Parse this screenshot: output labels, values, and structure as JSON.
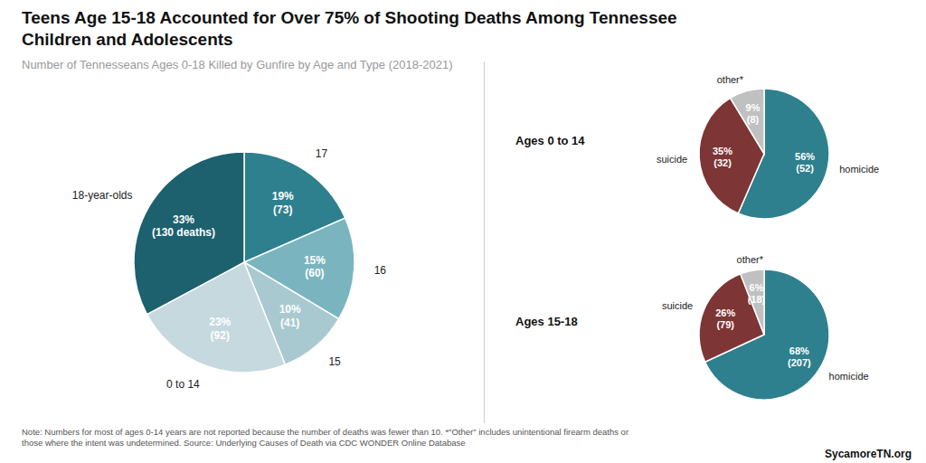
{
  "chart_data": [
    {
      "type": "pie",
      "title": "Teens Age 15-18 Accounted for Over 75% of Shooting Deaths Among Tennessee\nChildren and Adolescents",
      "subtitle": "Number of Tennesseans Ages 0-18 Killed by Gunfire by Age and Type (2018-2021)",
      "categories": [
        "17",
        "16",
        "15",
        "0 to 14",
        "18-year-olds"
      ],
      "values": [
        73,
        60,
        41,
        92,
        130
      ],
      "value_labels": [
        "19%\n(73)",
        "15%\n(60)",
        "10%\n(41)",
        "23%\n(92)",
        "33%\n(130 deaths)"
      ],
      "colors": [
        "#2e808e",
        "#7ab5bf",
        "#a8c9d0",
        "#c5d9de",
        "#1d606e"
      ],
      "data_labels": true,
      "annotations": [
        "Note: Numbers for most of ages 0-14 years are not reported because the number of deaths was fewer than 10. *\"Other\" includes unintentional firearm deaths or\nthose where the intent was undetermined. Source: Underlying Causes of Death via CDC WONDER Online Database",
        "SycamoreTN.org"
      ]
    },
    {
      "type": "pie",
      "title": "Ages 0 to 14",
      "categories": [
        "homicide",
        "suicide",
        "other*"
      ],
      "values": [
        52,
        32,
        8
      ],
      "value_labels": [
        "56%\n(52)",
        "35%\n(32)",
        "9%\n(8)"
      ],
      "colors": [
        "#2e808e",
        "#7d3535",
        "#c0c0c0"
      ],
      "data_labels": true
    },
    {
      "type": "pie",
      "title": "Ages 15-18",
      "categories": [
        "homicide",
        "suicide",
        "other*"
      ],
      "values": [
        207,
        79,
        18
      ],
      "value_labels": [
        "68%\n(207)",
        "26%\n(79)",
        "6%\n(18)"
      ],
      "colors": [
        "#2e808e",
        "#7d3535",
        "#c0c0c0"
      ],
      "data_labels": true
    }
  ]
}
